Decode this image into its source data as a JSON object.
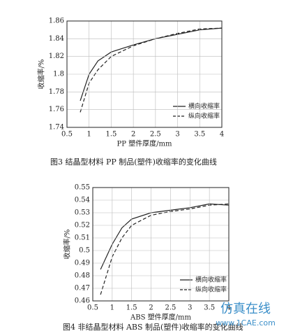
{
  "chart_data": [
    {
      "type": "line",
      "caption": "图3  结晶型材料 PP 制品(塑件)收缩率的变化曲线",
      "x_label": "PP 塑件厚度/mm",
      "y_label": "收缩率/%",
      "x": [
        0.8,
        1.0,
        1.2,
        1.5,
        2.0,
        2.5,
        3.0,
        3.5,
        4.0
      ],
      "series": [
        {
          "name": "横向收缩率",
          "color": "#222222",
          "dash": false,
          "values": [
            1.77,
            1.8,
            1.815,
            1.825,
            1.833,
            1.84,
            1.845,
            1.85,
            1.852
          ]
        },
        {
          "name": "纵向收缩率",
          "color": "#222222",
          "dash": true,
          "values": [
            1.757,
            1.79,
            1.805,
            1.82,
            1.832,
            1.84,
            1.846,
            1.851,
            1.852
          ]
        }
      ],
      "xlim": [
        0.5,
        4
      ],
      "xticks": [
        0.5,
        1,
        1.5,
        2,
        2.5,
        3,
        3.5,
        4
      ],
      "ylim": [
        1.74,
        1.86
      ],
      "yticks": [
        1.74,
        1.76,
        1.78,
        1.8,
        1.82,
        1.84,
        1.86
      ],
      "grid": true,
      "legend": "lower-right"
    },
    {
      "type": "line",
      "caption": "图4  非结晶型材料 ABS 制品(塑件)收缩率的变化曲线",
      "x_label": "ABS 塑件厚度/mm",
      "y_label": "收缩率/%",
      "x": [
        0.7,
        1.0,
        1.25,
        1.5,
        2.0,
        2.5,
        3.0,
        3.5,
        4.0
      ],
      "series": [
        {
          "name": "横向收缩率",
          "color": "#222222",
          "dash": false,
          "values": [
            0.485,
            0.505,
            0.518,
            0.525,
            0.53,
            0.532,
            0.534,
            0.537,
            0.536
          ]
        },
        {
          "name": "纵向收缩率",
          "color": "#222222",
          "dash": true,
          "values": [
            0.465,
            0.495,
            0.51,
            0.52,
            0.528,
            0.531,
            0.533,
            0.536,
            0.537
          ]
        }
      ],
      "xlim": [
        0.5,
        4
      ],
      "xticks": [
        0.5,
        1,
        1.5,
        2,
        2.5,
        3,
        3.5,
        4
      ],
      "ylim": [
        0.46,
        0.55
      ],
      "yticks": [
        0.46,
        0.47,
        0.48,
        0.49,
        0.5,
        0.51,
        0.52,
        0.53,
        0.54,
        0.55
      ],
      "grid": true,
      "legend": "lower-right"
    }
  ],
  "watermark": {
    "title": "仿真在线",
    "url": "www.1CAE.com"
  }
}
